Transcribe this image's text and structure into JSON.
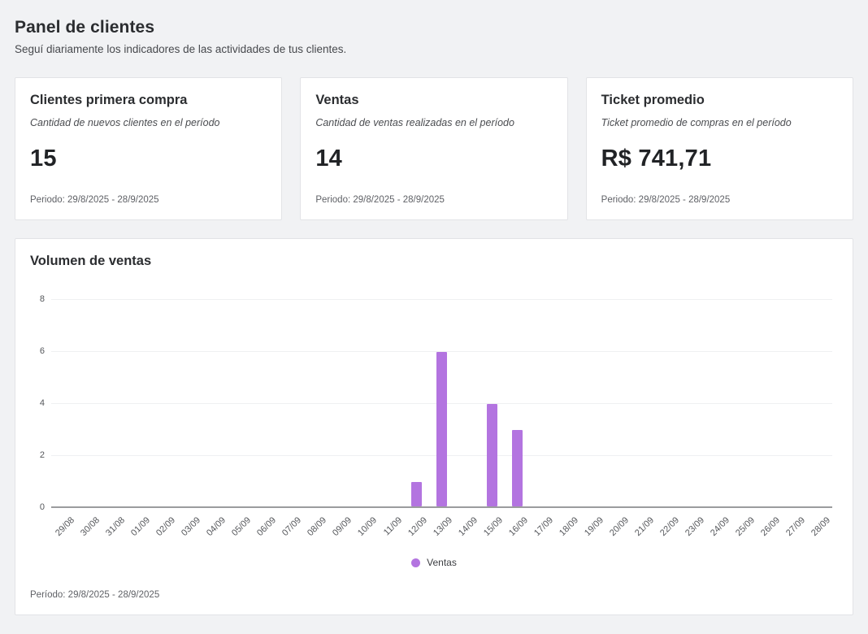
{
  "page": {
    "title": "Panel de clientes",
    "subtitle": "Seguí diariamente los indicadores de las actividades de tus clientes."
  },
  "cards": [
    {
      "title": "Clientes primera compra",
      "description": "Cantidad de nuevos clientes en el período",
      "value": "15",
      "period": "Periodo: 29/8/2025 - 28/9/2025"
    },
    {
      "title": "Ventas",
      "description": "Cantidad de ventas realizadas en el período",
      "value": "14",
      "period": "Periodo: 29/8/2025 - 28/9/2025"
    },
    {
      "title": "Ticket promedio",
      "description": "Ticket promedio de compras en el período",
      "value": "R$ 741,71",
      "period": "Periodo: 29/8/2025 - 28/9/2025"
    }
  ],
  "chart": {
    "title": "Volumen de ventas",
    "period": "Período: 29/8/2025 - 28/9/2025"
  },
  "chart_data": {
    "type": "bar",
    "title": "Volumen de ventas",
    "series_name": "Ventas",
    "categories": [
      "29/08",
      "30/08",
      "31/08",
      "01/09",
      "02/09",
      "03/09",
      "04/09",
      "05/09",
      "06/09",
      "07/09",
      "08/09",
      "09/09",
      "10/09",
      "11/09",
      "12/09",
      "13/09",
      "14/09",
      "15/09",
      "16/09",
      "17/09",
      "18/09",
      "19/09",
      "20/09",
      "21/09",
      "22/09",
      "23/09",
      "24/09",
      "25/09",
      "26/09",
      "27/09",
      "28/09"
    ],
    "values": [
      0,
      0,
      0,
      0,
      0,
      0,
      0,
      0,
      0,
      0,
      0,
      0,
      0,
      0,
      1,
      6,
      0,
      4,
      3,
      0,
      0,
      0,
      0,
      0,
      0,
      0,
      0,
      0,
      0,
      0,
      0
    ],
    "ylim": [
      0,
      8
    ],
    "yticks": [
      0,
      2,
      4,
      6,
      8
    ],
    "bar_color": "#b374e0",
    "grid": true,
    "legend_position": "bottom"
  }
}
